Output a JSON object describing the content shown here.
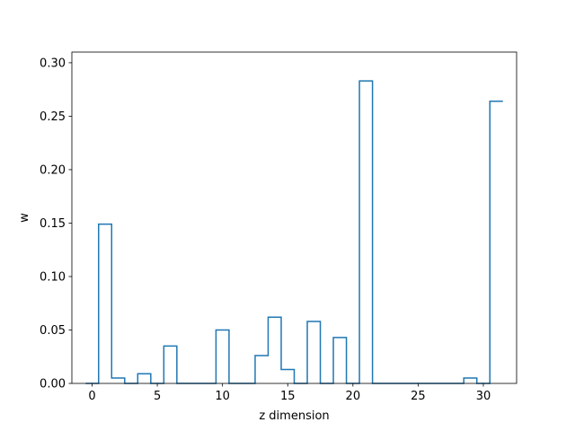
{
  "chart_data": {
    "type": "line",
    "style": "step",
    "xlabel": "z dimension",
    "ylabel": "w",
    "xlim": [
      -1.55,
      32.55
    ],
    "ylim": [
      0,
      0.31
    ],
    "x_ticks": [
      0,
      5,
      10,
      15,
      20,
      25,
      30
    ],
    "x_tick_labels": [
      "0",
      "5",
      "10",
      "15",
      "20",
      "25",
      "30"
    ],
    "y_ticks": [
      0.0,
      0.05,
      0.1,
      0.15,
      0.2,
      0.25,
      0.3
    ],
    "y_tick_labels": [
      "0.00",
      "0.05",
      "0.10",
      "0.15",
      "0.20",
      "0.25",
      "0.30"
    ],
    "grid": false,
    "series": [
      {
        "color": "#1f77b4",
        "x": [
          0,
          1,
          2,
          3,
          4,
          5,
          6,
          7,
          8,
          9,
          10,
          11,
          12,
          13,
          14,
          15,
          16,
          17,
          18,
          19,
          20,
          21,
          22,
          23,
          24,
          25,
          26,
          27,
          28,
          29,
          30,
          31
        ],
        "values": [
          0,
          0.149,
          0.005,
          0,
          0.009,
          0,
          0.035,
          0,
          0,
          0,
          0.05,
          0,
          0,
          0.026,
          0.062,
          0.013,
          0,
          0.058,
          0,
          0.043,
          0,
          0.283,
          0,
          0,
          0,
          0,
          0,
          0,
          0,
          0.005,
          0,
          0.264
        ]
      }
    ]
  }
}
